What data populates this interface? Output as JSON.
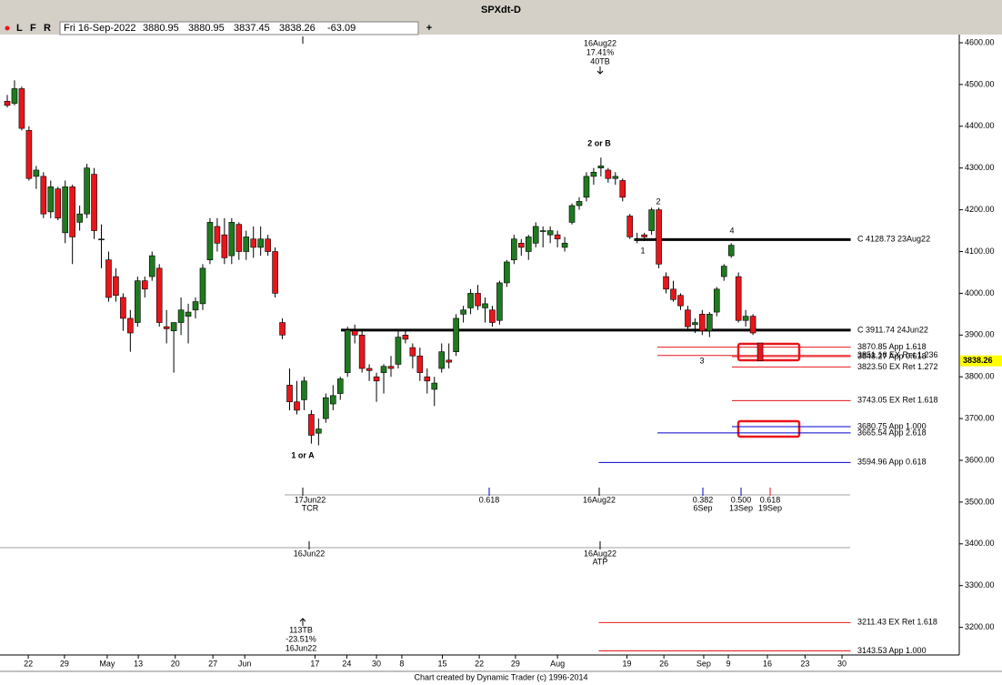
{
  "chart_data": {
    "type": "candlestick",
    "title": "SPXdt-D",
    "toolbar": {
      "buttons": [
        "L",
        "F",
        "R"
      ],
      "date": "Fri 16-Sep-2022",
      "ohlc": [
        3880.95,
        3880.95,
        3837.45,
        3838.26
      ],
      "change": -63.09,
      "add": "+"
    },
    "x": [
      0,
      1,
      2,
      3,
      4,
      5,
      6,
      7,
      8,
      9,
      10,
      11,
      12,
      13,
      14,
      15,
      16,
      17,
      18,
      19,
      20,
      21,
      22,
      23,
      24,
      25,
      26,
      27,
      28,
      29,
      30,
      31,
      32,
      33,
      34,
      35,
      36,
      37,
      38,
      39,
      40,
      41,
      42,
      43,
      44,
      45,
      46,
      47,
      48,
      49,
      50,
      51,
      52,
      53,
      54,
      55,
      56,
      57,
      58,
      59,
      60,
      61,
      62,
      63,
      64,
      65,
      66,
      67,
      68,
      69,
      70,
      71,
      72,
      73,
      74,
      75,
      76,
      77,
      78,
      79,
      80,
      81,
      82,
      83,
      84,
      85,
      86,
      87,
      88,
      89,
      90,
      91,
      92,
      93,
      94,
      95,
      96,
      97,
      98,
      99,
      100,
      101,
      102,
      103,
      104
    ],
    "open": [
      4460,
      4455,
      4490,
      4390,
      4280,
      4280,
      4195,
      4250,
      4145,
      4255,
      4170,
      4190,
      4285,
      4130,
      4080,
      4040,
      3990,
      3940,
      3930,
      4030,
      4040,
      4060,
      3920,
      3910,
      3930,
      3945,
      3960,
      3975,
      4080,
      4160,
      4140,
      4090,
      4165,
      4100,
      4130,
      4110,
      4130,
      4100,
      3930,
      3780,
      3740,
      3745,
      3710,
      3665,
      3700,
      3735,
      3760,
      3810,
      3910,
      3900,
      3820,
      3800,
      3810,
      3825,
      3830,
      3900,
      3870,
      3850,
      3800,
      3770,
      3820,
      3840,
      3860,
      3950,
      3965,
      4000,
      3965,
      3960,
      3935,
      4025,
      4080,
      4120,
      4100,
      4120,
      4150,
      4140,
      4140,
      4110,
      4170,
      4210,
      4230,
      4280,
      4300,
      4295,
      4275,
      4270,
      4185,
      4130,
      4140,
      4150,
      4200,
      4040,
      4010,
      3995,
      3960,
      3925,
      3950,
      3910,
      3955,
      4040,
      4090,
      4040,
      3935,
      3945,
      3880.95
    ],
    "high": [
      4475,
      4510,
      4495,
      4400,
      4305,
      4290,
      4270,
      4255,
      4270,
      4260,
      4210,
      4310,
      4300,
      4165,
      4100,
      4060,
      4000,
      3960,
      4040,
      4040,
      4100,
      4070,
      3960,
      3930,
      3990,
      3975,
      3990,
      4070,
      4180,
      4180,
      4180,
      4180,
      4170,
      4150,
      4160,
      4160,
      4140,
      4110,
      3940,
      3820,
      3790,
      3800,
      3720,
      3700,
      3760,
      3780,
      3800,
      3920,
      3925,
      3910,
      3830,
      3810,
      3830,
      3850,
      3910,
      3910,
      3880,
      3870,
      3820,
      3800,
      3880,
      3880,
      3950,
      3970,
      4010,
      4020,
      3990,
      3970,
      4030,
      4080,
      4140,
      4130,
      4140,
      4170,
      4160,
      4160,
      4150,
      4135,
      4215,
      4230,
      4290,
      4300,
      4325,
      4300,
      4290,
      4275,
      4190,
      4145,
      4145,
      4205,
      4205,
      4050,
      4030,
      4000,
      3970,
      3940,
      3960,
      3955,
      4015,
      4070,
      4120,
      4050,
      3960,
      3950,
      3880.95
    ],
    "low": [
      4445,
      4450,
      4390,
      4270,
      4250,
      4180,
      4180,
      4175,
      4120,
      4070,
      4150,
      4180,
      4130,
      4060,
      3980,
      3980,
      3910,
      3860,
      3920,
      3990,
      4030,
      3920,
      3880,
      3810,
      3900,
      3880,
      3940,
      3960,
      4070,
      4100,
      4070,
      4070,
      4080,
      4080,
      4085,
      4090,
      4090,
      3990,
      3890,
      3720,
      3710,
      3720,
      3640,
      3636,
      3690,
      3720,
      3745,
      3800,
      3880,
      3810,
      3790,
      3740,
      3760,
      3800,
      3820,
      3880,
      3820,
      3790,
      3760,
      3730,
      3810,
      3820,
      3850,
      3930,
      3950,
      3960,
      3930,
      3920,
      3925,
      4015,
      4070,
      4090,
      4080,
      4110,
      4110,
      4120,
      4110,
      4100,
      4165,
      4200,
      4220,
      4260,
      4280,
      4265,
      4260,
      4220,
      4130,
      4120,
      4125,
      4140,
      4060,
      4000,
      3980,
      3960,
      3910,
      3905,
      3900,
      3895,
      3945,
      4030,
      4085,
      3930,
      3920,
      3900,
      3837.45
    ],
    "close": [
      4450,
      4490,
      4395,
      4275,
      4295,
      4190,
      4255,
      4180,
      4255,
      4135,
      4190,
      4300,
      4150,
      4130,
      3990,
      3995,
      3940,
      3905,
      4030,
      4010,
      4090,
      3930,
      3915,
      3930,
      3960,
      3955,
      3980,
      4060,
      4170,
      4120,
      4085,
      4170,
      4100,
      4135,
      4110,
      4130,
      4100,
      4000,
      3900,
      3740,
      3720,
      3790,
      3660,
      3675,
      3750,
      3755,
      3795,
      3912,
      3900,
      3820,
      3815,
      3790,
      3825,
      3820,
      3895,
      3890,
      3850,
      3810,
      3790,
      3785,
      3860,
      3835,
      3940,
      3960,
      4000,
      3970,
      3975,
      3930,
      4025,
      4075,
      4130,
      4110,
      4135,
      4160,
      4150,
      4150,
      4130,
      4120,
      4210,
      4220,
      4280,
      4290,
      4305,
      4275,
      4280,
      4230,
      4135,
      4130,
      4135,
      4200,
      4070,
      4010,
      3985,
      3970,
      3920,
      3930,
      3910,
      3950,
      4010,
      4065,
      4115,
      3935,
      3945,
      3905,
      3838.26
    ],
    "up_color": "#1f7a1f",
    "down_color": "#e8161b",
    "xlim": [
      -1.005,
      131.5
    ],
    "xticks": [
      {
        "value": 2.9,
        "label": "22"
      },
      {
        "value": 7.9,
        "label": "29"
      },
      {
        "value": 13.8,
        "label": "May"
      },
      {
        "value": 18.1,
        "label": "13"
      },
      {
        "value": 23.2,
        "label": "20"
      },
      {
        "value": 28.4,
        "label": "27"
      },
      {
        "value": 32.8,
        "label": "Jun"
      },
      {
        "value": 42.5,
        "label": "17"
      },
      {
        "value": 46.9,
        "label": "24"
      },
      {
        "value": 51.0,
        "label": "30"
      },
      {
        "value": 54.5,
        "label": "8"
      },
      {
        "value": 60.1,
        "label": "15"
      },
      {
        "value": 65.2,
        "label": "22"
      },
      {
        "value": 70.2,
        "label": "29"
      },
      {
        "value": 76.0,
        "label": "Aug"
      },
      {
        "value": 85.6,
        "label": "19"
      },
      {
        "value": 90.7,
        "label": "26"
      },
      {
        "value": 96.2,
        "label": "Sep"
      },
      {
        "value": 99.6,
        "label": "9"
      },
      {
        "value": 105.0,
        "label": "16"
      },
      {
        "value": 110.2,
        "label": "23"
      },
      {
        "value": 115.3,
        "label": "30"
      }
    ],
    "ylim": [
      3133.8,
      4619.6
    ],
    "yticks": [
      {
        "value": 3200,
        "label": "3200.00"
      },
      {
        "value": 3300,
        "label": "3300.00"
      },
      {
        "value": 3400,
        "label": "3400.00"
      },
      {
        "value": 3500,
        "label": "3500.00"
      },
      {
        "value": 3600,
        "label": "3600.00"
      },
      {
        "value": 3700,
        "label": "3700.00"
      },
      {
        "value": 3800,
        "label": "3800.00"
      },
      {
        "value": 3900,
        "label": "3900.00"
      },
      {
        "value": 4000,
        "label": "4000.00"
      },
      {
        "value": 4100,
        "label": "4100.00"
      },
      {
        "value": 4200,
        "label": "4200.00"
      },
      {
        "value": 4300,
        "label": "4300.00"
      },
      {
        "value": 4400,
        "label": "4400.00"
      },
      {
        "value": 4500,
        "label": "4500.00"
      },
      {
        "value": 4600,
        "label": "4600.00"
      }
    ],
    "last_price": 3838.26,
    "levels_end": 116.5,
    "levels": [
      {
        "value": 4128.73,
        "start": 86.6,
        "label": "C 4128.73 23Aug22",
        "color": "#000000",
        "width": 3
      },
      {
        "value": 3911.74,
        "start": 46.1,
        "label": "C 3911.74 24Jun22",
        "color": "#000000",
        "width": 3
      },
      {
        "value": 3870.85,
        "start": 89.8,
        "label": "3870.85 App 1.618",
        "color": "#e8161b",
        "width": 1
      },
      {
        "value": 3851.16,
        "start": 89.8,
        "label": "3851.16 EX Ret 1.236",
        "color": "#e8161b",
        "width": 1
      },
      {
        "value": 3848.27,
        "start": 100.1,
        "label": "3848.27 App 0.618",
        "color": "#e8161b",
        "width": 1
      },
      {
        "value": 3823.5,
        "start": 100.1,
        "label": "3823.50 EX Ret 1.272",
        "color": "#e8161b",
        "width": 1
      },
      {
        "value": 3743.05,
        "start": 100.1,
        "label": "3743.05 EX Ret 1.618",
        "color": "#e8161b",
        "width": 1
      },
      {
        "value": 3680.75,
        "start": 100.1,
        "label": "3680.75 App 1.000",
        "color": "#0000cc",
        "width": 1
      },
      {
        "value": 3665.54,
        "start": 89.8,
        "label": "3665.54 App 2.618",
        "color": "#0000cc",
        "width": 1
      },
      {
        "value": 3594.96,
        "start": 81.7,
        "label": "3594.96 App 0.618",
        "color": "#0000cc",
        "width": 1
      },
      {
        "value": 3211.43,
        "start": 81.7,
        "label": "3211.43 EX Ret 1.618",
        "color": "#e8161b",
        "width": 1
      },
      {
        "value": 3143.53,
        "start": 81.7,
        "label": "3143.53 App 1.000",
        "color": "#e8161b",
        "width": 1
      }
    ],
    "wave_labels": [
      "2 or B",
      "1 or A",
      "1",
      "2",
      "3",
      "4"
    ],
    "pivot_notes": [
      {
        "lines": [
          "16Aug22",
          "17.41%",
          "40TB"
        ]
      },
      {
        "lines": [
          "113TB",
          "-23.51%",
          "16Jun22"
        ]
      }
    ],
    "time_markers": [
      {
        "lines": [
          "17Jun22",
          "TCR"
        ],
        "color": "#000000"
      },
      {
        "lines": [
          "0.618"
        ],
        "color": "#0000cc"
      },
      {
        "lines": [
          "16Aug22"
        ],
        "color": "#000000"
      },
      {
        "lines": [
          "0.382",
          "6Sep"
        ],
        "color": "#0000cc"
      },
      {
        "lines": [
          "0.500",
          "13Sep"
        ],
        "color": "#0000cc"
      },
      {
        "lines": [
          "0.618",
          "19Sep"
        ],
        "color": "#e8161b"
      },
      {
        "lines": [
          "16Jun22"
        ],
        "color": "#000000"
      },
      {
        "lines": [
          "16Aug22",
          "ATP"
        ],
        "color": "#000000"
      }
    ],
    "footer": "Chart created by Dynamic Trader  (c) 1996-2014"
  }
}
